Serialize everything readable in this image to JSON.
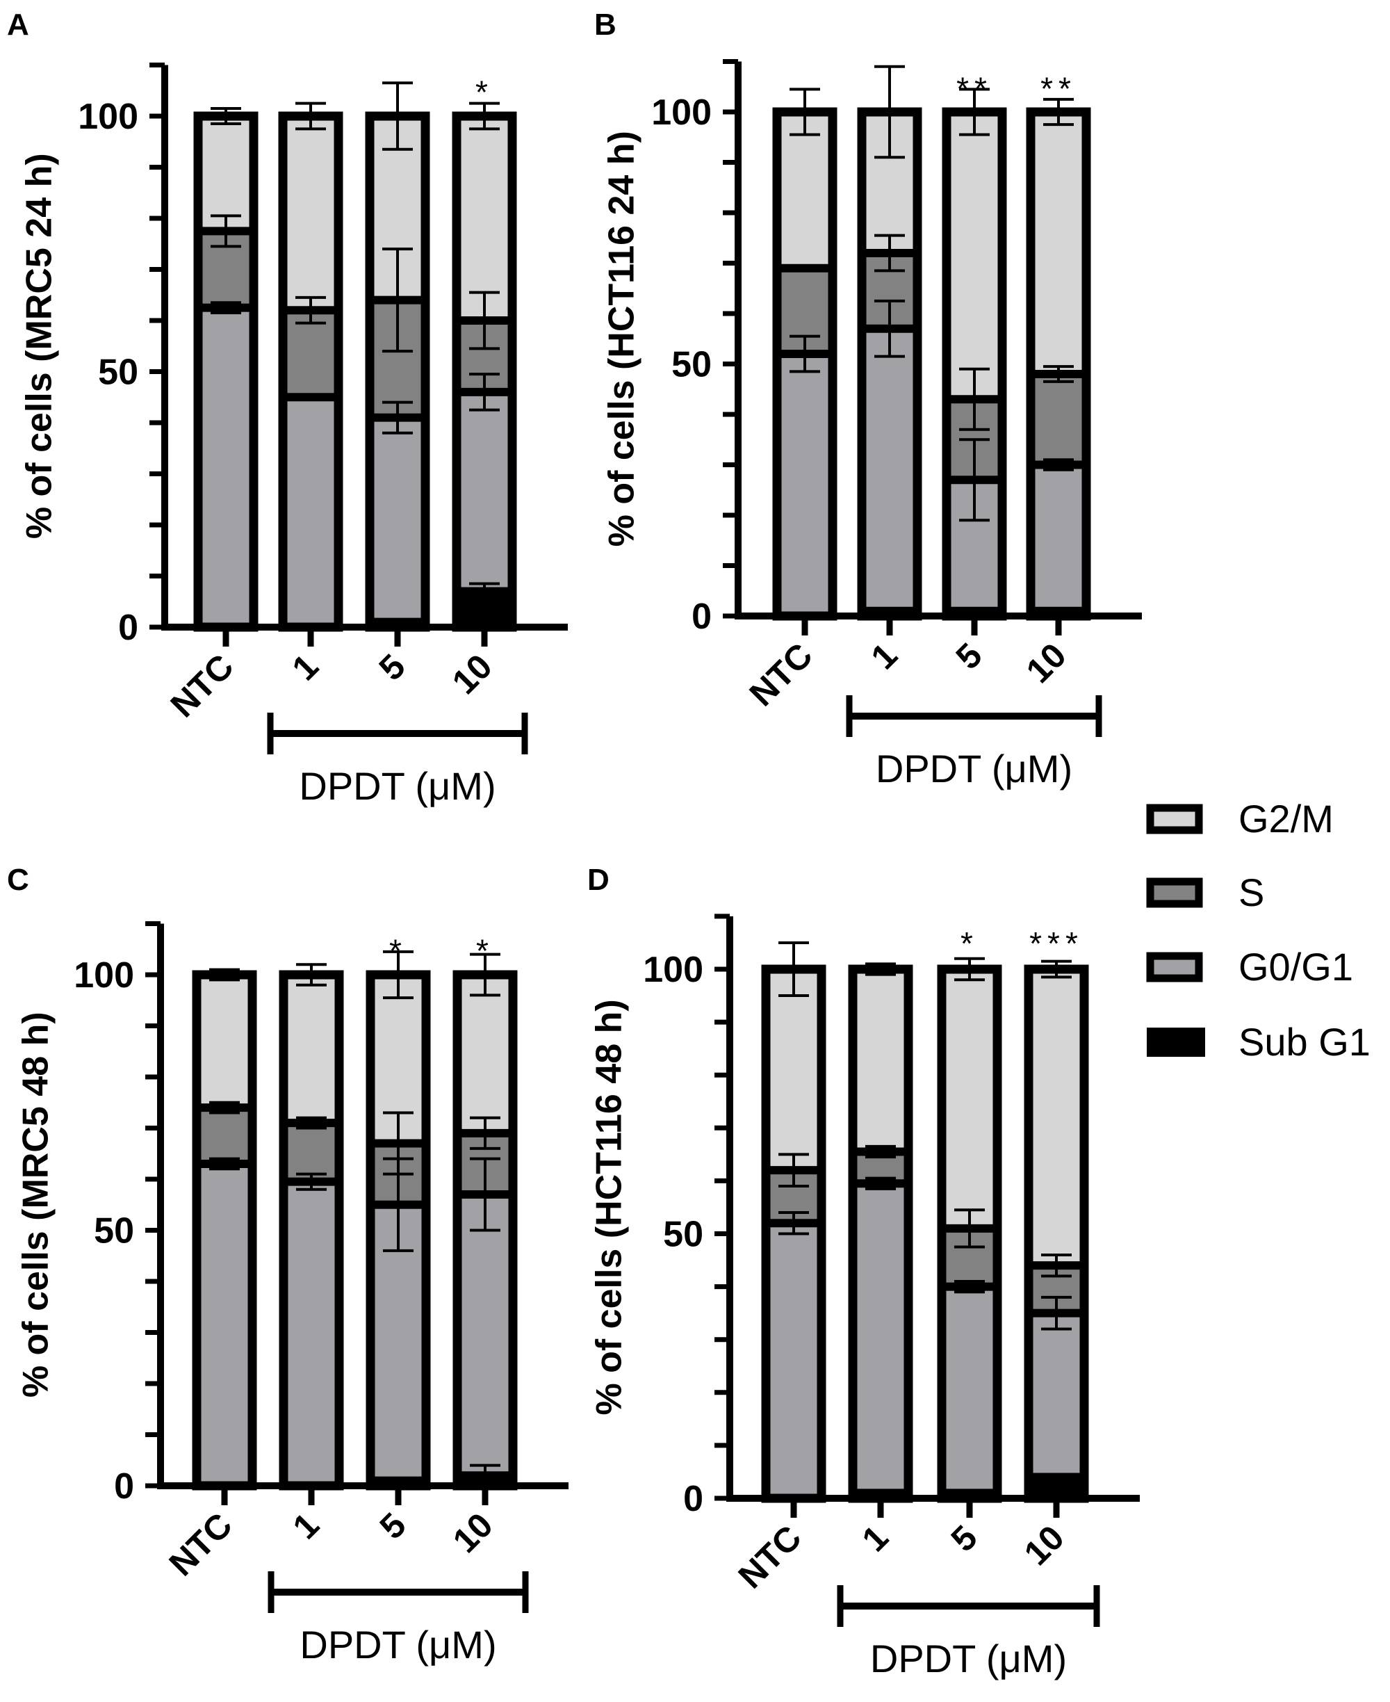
{
  "legend": {
    "items": [
      {
        "label": "G2/M",
        "color": "#d6d6d6"
      },
      {
        "label": "S",
        "color": "#828282"
      },
      {
        "label": "G0/G1",
        "color": "#a2a2a6"
      },
      {
        "label": "Sub G1",
        "color": "#000000"
      }
    ]
  },
  "chart_data": [
    {
      "panel": "A",
      "type": "bar",
      "stacked": true,
      "ylabel": "% of cells (MRC5 24 h)",
      "xlabel": "DPDT (μM)",
      "categories": [
        "NTC",
        "1",
        "5",
        "10"
      ],
      "yticks": [
        "0",
        "50",
        "100"
      ],
      "ylim": [
        0,
        110
      ],
      "significance": [
        "",
        "",
        "",
        "*"
      ],
      "series": [
        {
          "name": "Sub G1",
          "values": [
            0.5,
            0,
            1,
            7
          ],
          "errors": [
            0,
            0,
            0,
            1.5
          ]
        },
        {
          "name": "G0/G1",
          "values": [
            62,
            45,
            40,
            39
          ],
          "errors": [
            1,
            0.5,
            3,
            3.5
          ]
        },
        {
          "name": "S",
          "values": [
            15,
            17,
            23,
            14
          ],
          "errors": [
            3,
            2.5,
            10,
            5.5
          ]
        },
        {
          "name": "G2/M",
          "values": [
            22.5,
            38,
            36,
            40
          ],
          "errors": [
            1.5,
            2.5,
            6.5,
            2.5
          ]
        }
      ]
    },
    {
      "panel": "B",
      "type": "bar",
      "stacked": true,
      "ylabel": "% of cells (HCT116 24 h)",
      "xlabel": "DPDT (μM)",
      "categories": [
        "NTC",
        "1",
        "5",
        "10"
      ],
      "yticks": [
        "0",
        "50",
        "100"
      ],
      "ylim": [
        0,
        110
      ],
      "significance": [
        "",
        "",
        "**",
        "**"
      ],
      "series": [
        {
          "name": "Sub G1",
          "values": [
            0.5,
            1,
            1,
            1
          ],
          "errors": [
            0,
            0.5,
            0,
            0.5
          ]
        },
        {
          "name": "G0/G1",
          "values": [
            51.5,
            56,
            26,
            29
          ],
          "errors": [
            3.5,
            5.5,
            8,
            1
          ]
        },
        {
          "name": "S",
          "values": [
            17,
            15,
            16,
            18
          ],
          "errors": [
            0.5,
            3.5,
            6,
            1.5
          ]
        },
        {
          "name": "G2/M",
          "values": [
            31,
            28,
            57,
            52
          ],
          "errors": [
            4.5,
            9,
            4.5,
            2.5
          ]
        }
      ]
    },
    {
      "panel": "C",
      "type": "bar",
      "stacked": true,
      "ylabel": "% of cells (MRC5 48 h)",
      "xlabel": "DPDT (μM)",
      "categories": [
        "NTC",
        "1",
        "5",
        "10"
      ],
      "yticks": [
        "0",
        "50",
        "100"
      ],
      "ylim": [
        0,
        110
      ],
      "significance": [
        "",
        "",
        "*",
        "*"
      ],
      "series": [
        {
          "name": "Sub G1",
          "values": [
            0.5,
            0,
            1,
            2
          ],
          "errors": [
            0,
            0,
            0.5,
            2
          ]
        },
        {
          "name": "G0/G1",
          "values": [
            62.5,
            59.5,
            54,
            55
          ],
          "errors": [
            1,
            1.5,
            9,
            7
          ]
        },
        {
          "name": "S",
          "values": [
            11,
            11.5,
            12,
            12
          ],
          "errors": [
            1,
            1,
            6,
            3
          ]
        },
        {
          "name": "G2/M",
          "values": [
            26,
            29,
            33,
            31
          ],
          "errors": [
            1,
            2,
            4.5,
            4
          ]
        }
      ]
    },
    {
      "panel": "D",
      "type": "bar",
      "stacked": true,
      "ylabel": "% of cells (HCT116 48 h)",
      "xlabel": "DPDT (μM)",
      "categories": [
        "NTC",
        "1",
        "5",
        "10"
      ],
      "yticks": [
        "0",
        "50",
        "100"
      ],
      "ylim": [
        0,
        110
      ],
      "significance": [
        "",
        "",
        "*",
        "***"
      ],
      "series": [
        {
          "name": "Sub G1",
          "values": [
            0.5,
            1,
            1,
            4
          ],
          "errors": [
            0,
            0,
            0.5,
            0.5
          ]
        },
        {
          "name": "G0/G1",
          "values": [
            51.5,
            58.5,
            39,
            31
          ],
          "errors": [
            2,
            1,
            1,
            3
          ]
        },
        {
          "name": "S",
          "values": [
            10,
            6,
            11,
            9
          ],
          "errors": [
            3,
            1,
            3.5,
            2
          ]
        },
        {
          "name": "G2/M",
          "values": [
            38,
            34.5,
            49,
            56
          ],
          "errors": [
            5,
            1,
            2,
            1.5
          ]
        }
      ]
    }
  ]
}
